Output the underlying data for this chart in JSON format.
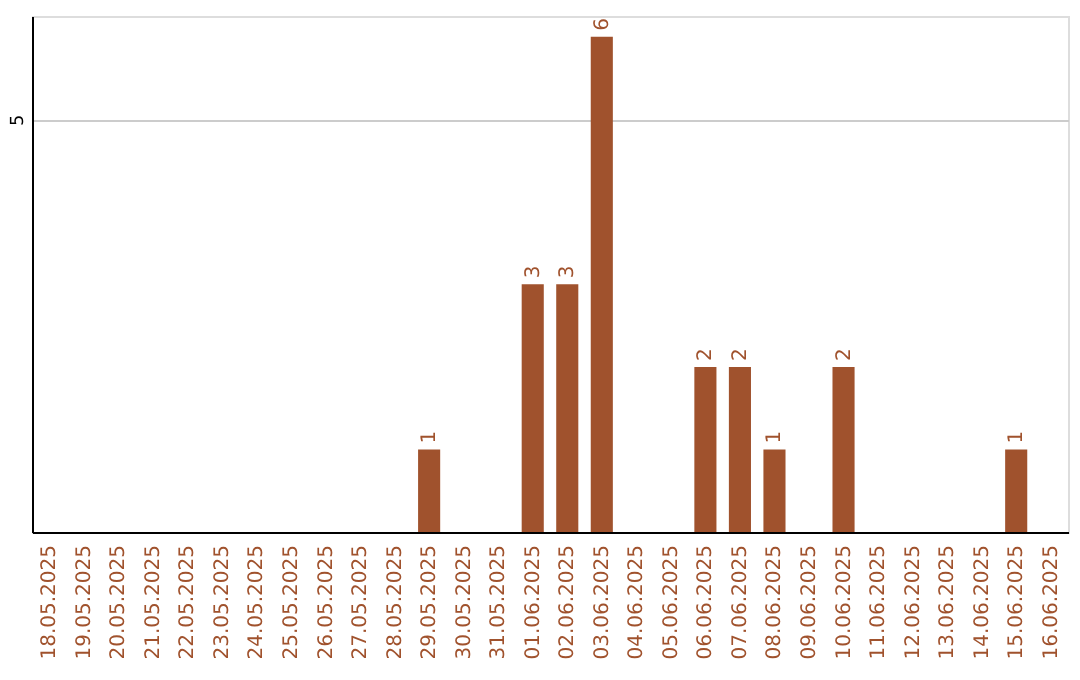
{
  "chart_data": {
    "type": "bar",
    "categories": [
      "18.05.2025",
      "19.05.2025",
      "20.05.2025",
      "21.05.2025",
      "22.05.2025",
      "23.05.2025",
      "24.05.2025",
      "25.05.2025",
      "26.05.2025",
      "27.05.2025",
      "28.05.2025",
      "29.05.2025",
      "30.05.2025",
      "31.05.2025",
      "01.06.2025",
      "02.06.2025",
      "03.06.2025",
      "04.06.2025",
      "05.06.2025",
      "06.06.2025",
      "07.06.2025",
      "08.06.2025",
      "09.06.2025",
      "10.06.2025",
      "11.06.2025",
      "12.06.2025",
      "13.06.2025",
      "14.06.2025",
      "15.06.2025",
      "16.06.2025"
    ],
    "values": [
      0,
      0,
      0,
      0,
      0,
      0,
      0,
      0,
      0,
      0,
      0,
      1,
      0,
      0,
      3,
      3,
      6,
      0,
      0,
      2,
      2,
      1,
      0,
      2,
      0,
      0,
      0,
      0,
      1,
      0
    ],
    "color": "#a0522d",
    "value_labels": [
      null,
      null,
      null,
      null,
      null,
      null,
      null,
      null,
      null,
      null,
      null,
      "1",
      null,
      null,
      "3",
      "3",
      "6",
      null,
      null,
      "2",
      "2",
      "1",
      null,
      "2",
      null,
      null,
      null,
      null,
      "1",
      null
    ],
    "ylim": [
      0,
      6.25
    ],
    "yticks": [
      5
    ],
    "grid": "y"
  }
}
